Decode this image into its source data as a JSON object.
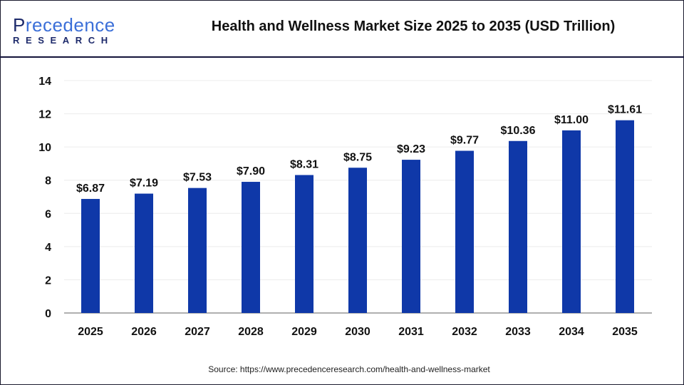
{
  "header": {
    "logo_text": "Precedence",
    "logo_sub": "RESEARCH",
    "title": "Health and Wellness Market Size 2025 to 2035 (USD Trillion)"
  },
  "source": "Source: https://www.precedenceresearch.com/health-and-wellness-market",
  "colors": {
    "bar": "#0f38a8",
    "grid": "#ececec",
    "axis": "#b0b0b0"
  },
  "chart_data": {
    "type": "bar",
    "title": "Health and Wellness Market Size 2025 to 2035 (USD Trillion)",
    "categories": [
      "2025",
      "2026",
      "2027",
      "2028",
      "2029",
      "2030",
      "2031",
      "2032",
      "2033",
      "2034",
      "2035"
    ],
    "values": [
      6.87,
      7.19,
      7.53,
      7.9,
      8.31,
      8.75,
      9.23,
      9.77,
      10.36,
      11.0,
      11.61
    ],
    "data_labels": [
      "$6.87",
      "$7.19",
      "$7.53",
      "$7.90",
      "$8.31",
      "$8.75",
      "$9.23",
      "$9.77",
      "$10.36",
      "$11.00",
      "$11.61"
    ],
    "yticks": [
      0,
      2,
      4,
      6,
      8,
      10,
      12,
      14
    ],
    "ylim": [
      0,
      14
    ],
    "grid": true,
    "xlabel": "",
    "ylabel": ""
  }
}
